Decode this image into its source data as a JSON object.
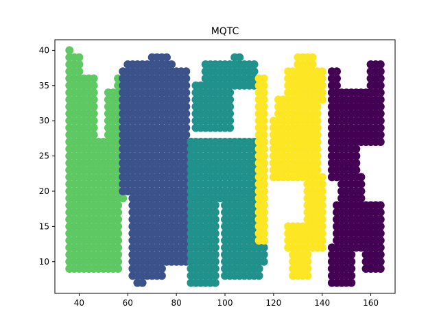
{
  "chart_data": {
    "type": "scatter",
    "title": "MQTC",
    "xlabel": "",
    "ylabel": "",
    "xlim": [
      30,
      170
    ],
    "ylim": [
      5.5,
      41.5
    ],
    "xticks": [
      40,
      60,
      80,
      100,
      120,
      140,
      160
    ],
    "yticks": [
      10,
      15,
      20,
      25,
      30,
      35,
      40
    ],
    "grid": false,
    "legend": "none",
    "series": [
      {
        "color": "#5ec962",
        "rects": [
          [
            36,
            36,
            40,
            40
          ],
          [
            36,
            40,
            33,
            39
          ],
          [
            36,
            46,
            27,
            36
          ],
          [
            36,
            48,
            9,
            27
          ],
          [
            48,
            56,
            9,
            19
          ],
          [
            50,
            58,
            19,
            27
          ],
          [
            52,
            58,
            27,
            34
          ],
          [
            56,
            60,
            34,
            36
          ]
        ]
      },
      {
        "color": "#3b528b",
        "rects": [
          [
            58,
            84,
            20,
            37
          ],
          [
            60,
            78,
            37,
            38
          ],
          [
            70,
            76,
            38,
            39
          ],
          [
            62,
            74,
            8,
            20
          ],
          [
            64,
            66,
            7,
            8
          ],
          [
            74,
            84,
            10,
            20
          ],
          [
            84,
            86,
            20,
            27
          ]
        ]
      },
      {
        "color": "#21918c",
        "rects": [
          [
            86,
            96,
            7,
            27
          ],
          [
            86,
            116,
            19,
            27
          ],
          [
            88,
            102,
            29,
            35
          ],
          [
            92,
            112,
            35,
            38
          ],
          [
            104,
            106,
            38,
            39
          ],
          [
            100,
            114,
            8,
            19
          ],
          [
            110,
            116,
            10,
            18
          ]
        ]
      },
      {
        "color": "#fde725",
        "rects": [
          [
            114,
            116,
            13,
            36
          ],
          [
            120,
            138,
            22,
            30
          ],
          [
            122,
            138,
            30,
            33
          ],
          [
            126,
            140,
            33,
            37
          ],
          [
            130,
            136,
            37,
            39
          ],
          [
            134,
            140,
            15,
            22
          ],
          [
            126,
            140,
            12,
            15
          ],
          [
            128,
            134,
            8,
            12
          ]
        ]
      },
      {
        "color": "#440154",
        "rects": [
          [
            144,
            154,
            22,
            34
          ],
          [
            144,
            146,
            34,
            37
          ],
          [
            154,
            164,
            27,
            34
          ],
          [
            160,
            164,
            34,
            38
          ],
          [
            148,
            156,
            18,
            22
          ],
          [
            146,
            164,
            12,
            18
          ],
          [
            144,
            152,
            7,
            12
          ],
          [
            158,
            164,
            9,
            12
          ]
        ]
      }
    ]
  }
}
